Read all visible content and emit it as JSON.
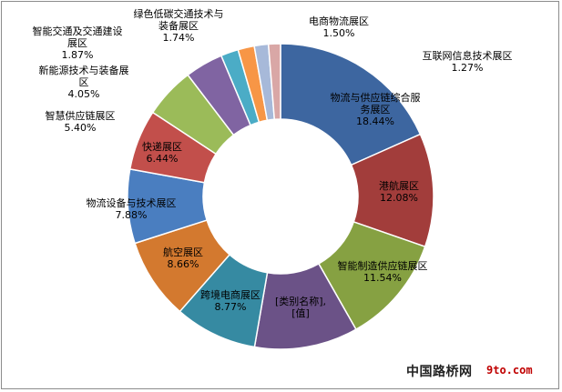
{
  "chart_data": {
    "type": "pie",
    "variant": "donut",
    "slices": [
      {
        "label": "物流与供应链综合服务展区",
        "value": 18.44,
        "pct_text": "18.44%",
        "color": "#3d66a0"
      },
      {
        "label": "港航展区",
        "value": 12.08,
        "pct_text": "12.08%",
        "color": "#a23d3b"
      },
      {
        "label": "智能制造供应链展区",
        "value": 11.54,
        "pct_text": "11.54%",
        "color": "#86a142"
      },
      {
        "label": "[类别名称],",
        "value": 11.0,
        "pct_text": "[值]",
        "color": "#6b5287"
      },
      {
        "label": "跨境电商展区",
        "value": 8.77,
        "pct_text": "8.77%",
        "color": "#368aa2"
      },
      {
        "label": "航空展区",
        "value": 8.66,
        "pct_text": "8.66%",
        "color": "#d3792f"
      },
      {
        "label": "物流设备与技术展区",
        "value": 7.88,
        "pct_text": "7.88%",
        "color": "#4a7ec0"
      },
      {
        "label": "快递展区",
        "value": 6.44,
        "pct_text": "6.44%",
        "color": "#c24f4b"
      },
      {
        "label": "智慧供应链展区",
        "value": 5.4,
        "pct_text": "5.40%",
        "color": "#9bbb59"
      },
      {
        "label": "新能源技术与装备展区",
        "value": 4.05,
        "pct_text": "4.05%",
        "color": "#8064a2"
      },
      {
        "label": "智能交通及交通建设展区",
        "value": 1.87,
        "pct_text": "1.87%",
        "color": "#4bacc6"
      },
      {
        "label": "绿色低碳交通技术与装备展区",
        "value": 1.74,
        "pct_text": "1.74%",
        "color": "#f79646"
      },
      {
        "label": "电商物流展区",
        "value": 1.5,
        "pct_text": "1.50%",
        "color": "#a7b9d9"
      },
      {
        "label": "互联网信息技术展区",
        "value": 1.27,
        "pct_text": "1.27%",
        "color": "#d9a7a6"
      }
    ]
  },
  "watermark": {
    "site_cn": "中国路桥网",
    "site_url": "9to.com"
  }
}
